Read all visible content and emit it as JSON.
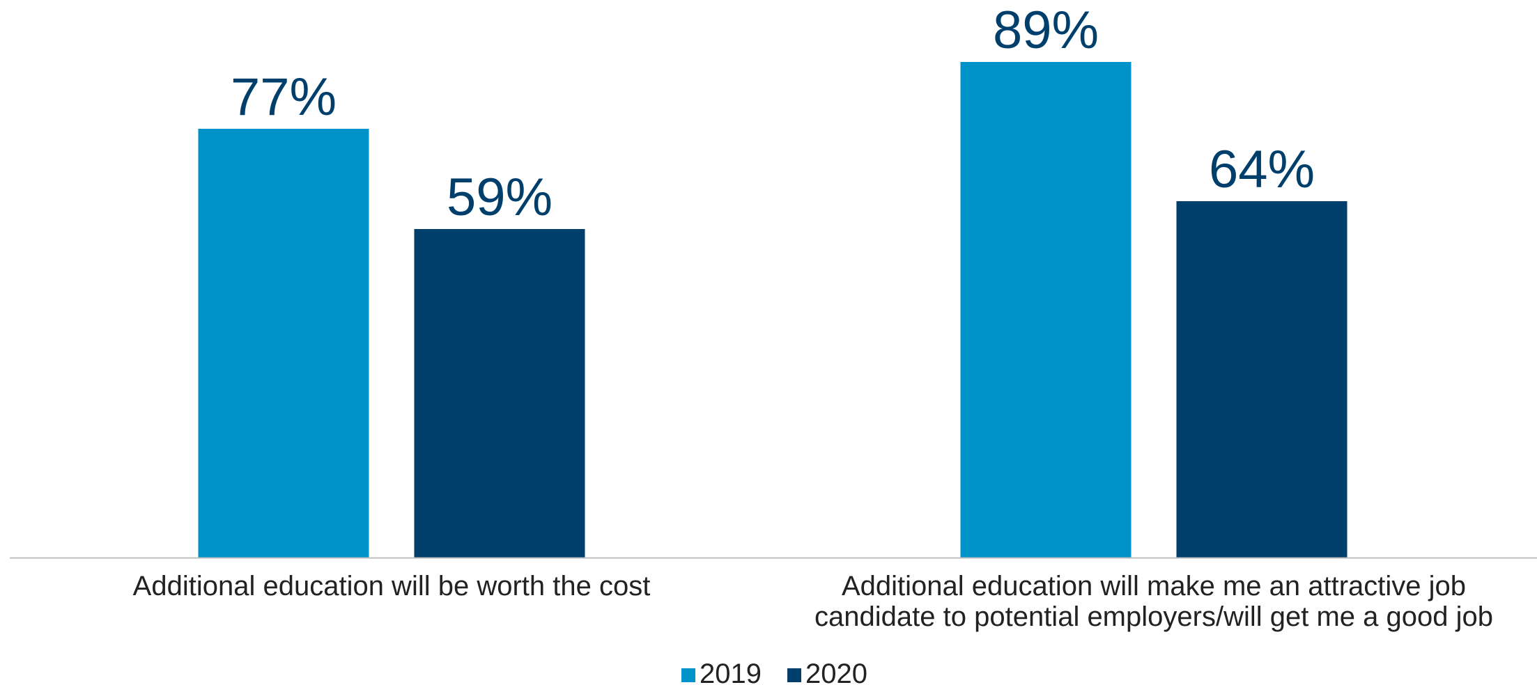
{
  "chart_data": {
    "type": "bar",
    "categories": [
      [
        "Additional education will be worth the cost"
      ],
      [
        "Additional education will make me an attractive job",
        "candidate to potential employers/will get me a good job"
      ]
    ],
    "series": [
      {
        "name": "2019",
        "color": "#0093c9",
        "values": [
          77,
          89
        ],
        "labels": [
          "77%",
          "89%"
        ]
      },
      {
        "name": "2020",
        "color": "#003f6b",
        "values": [
          59,
          64
        ],
        "labels": [
          "59%",
          "64%"
        ]
      }
    ],
    "ylim": [
      0,
      100
    ],
    "grid": false,
    "legend_position": "bottom-center",
    "label_color": "#003f6b",
    "axis_color": "#bfbfbf"
  }
}
